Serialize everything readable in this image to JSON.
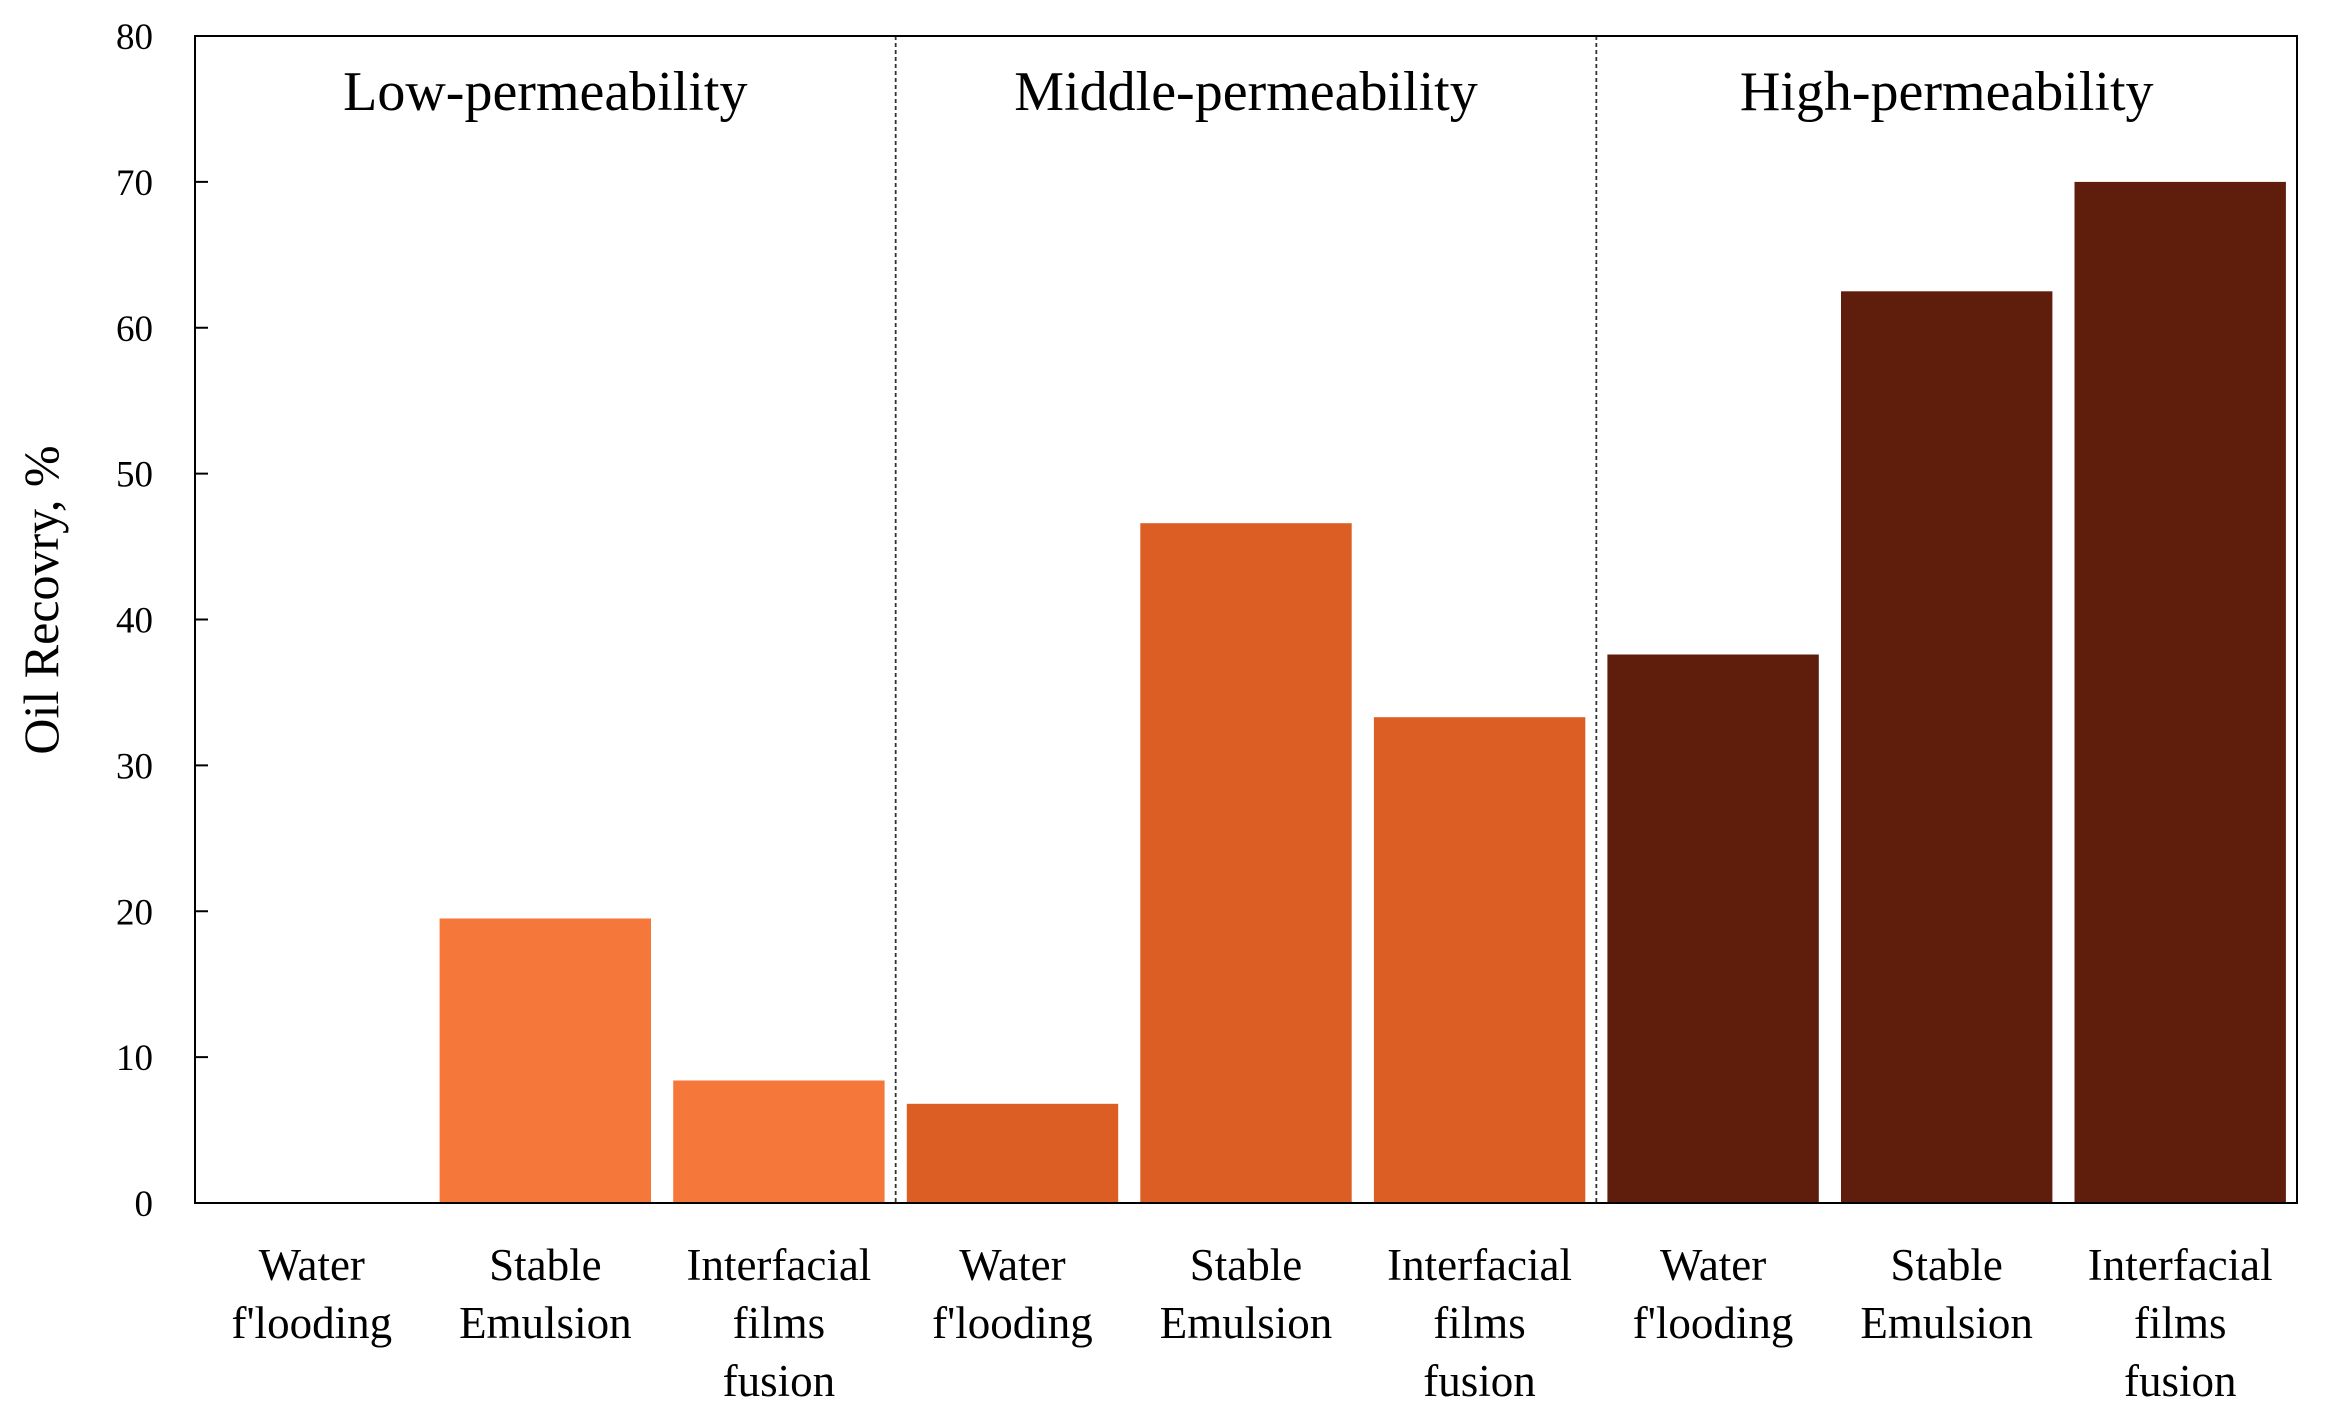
{
  "chart_data": {
    "type": "bar",
    "title": "",
    "xlabel": "",
    "ylabel": "Oil Recovry, %",
    "ylim": [
      0,
      80
    ],
    "yticks": [
      0,
      10,
      20,
      30,
      40,
      50,
      60,
      70,
      80
    ],
    "grid": false,
    "groups": [
      {
        "label": "Low-permeability",
        "color": "#F5773A",
        "bars": [
          {
            "category": [
              "Water",
              "f'looding"
            ],
            "value": 0
          },
          {
            "category": [
              "Stable",
              "Emulsion"
            ],
            "value": 19.5
          },
          {
            "category": [
              "Interfacial",
              "films",
              "fusion"
            ],
            "value": 8.4
          }
        ]
      },
      {
        "label": "Middle-permeability",
        "color": "#DC5E25",
        "bars": [
          {
            "category": [
              "Water",
              "f'looding"
            ],
            "value": 6.8
          },
          {
            "category": [
              "Stable",
              "Emulsion"
            ],
            "value": 46.6
          },
          {
            "category": [
              "Interfacial",
              "films",
              "fusion"
            ],
            "value": 33.3
          }
        ]
      },
      {
        "label": "High-permeability",
        "color": "#5F1E0B",
        "bars": [
          {
            "category": [
              "Water",
              "f'looding"
            ],
            "value": 37.6
          },
          {
            "category": [
              "Stable",
              "Emulsion"
            ],
            "value": 62.5
          },
          {
            "category": [
              "Interfacial",
              "films",
              "fusion"
            ],
            "value": 70
          }
        ]
      }
    ]
  }
}
